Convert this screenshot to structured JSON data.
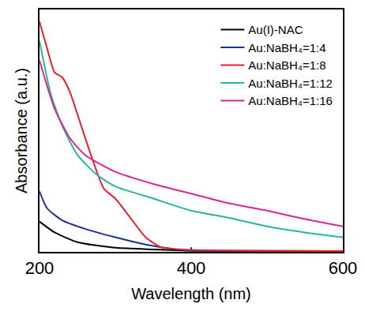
{
  "chart_data": {
    "type": "line",
    "x_label": "Wavelength (nm)",
    "y_label": "Absorbance (a.u.)",
    "xlim": [
      200,
      600
    ],
    "xticks": [
      200,
      400,
      600
    ],
    "ylim": [
      0,
      1
    ],
    "tick_labels": "x",
    "grid": false,
    "legend": "top-right",
    "series": [
      {
        "name": "Au(I)-NAC",
        "color": "#000000",
        "x": [
          200,
          220,
          250,
          300,
          350,
          400,
          600
        ],
        "values": [
          0.125,
          0.08,
          0.04,
          0.017,
          0.01,
          0.005,
          0.003
        ]
      },
      {
        "name": "Au:NaBH₄=1:4",
        "color": "#1f2f8f",
        "x": [
          200,
          210,
          230,
          260,
          300,
          340,
          380,
          400,
          600
        ],
        "values": [
          0.25,
          0.18,
          0.13,
          0.095,
          0.06,
          0.03,
          0.01,
          0.005,
          0.002
        ]
      },
      {
        "name": "Au:NaBH₄=1:8",
        "color": "#e8202a",
        "x": [
          200,
          210,
          220,
          230,
          240,
          255,
          270,
          285,
          300,
          320,
          340,
          360,
          400,
          500,
          600
        ],
        "values": [
          0.95,
          0.84,
          0.74,
          0.72,
          0.66,
          0.52,
          0.38,
          0.26,
          0.22,
          0.14,
          0.06,
          0.02,
          0.008,
          0.004,
          0.003
        ]
      },
      {
        "name": "Au:NaBH₄=1:12",
        "color": "#2bb5a0",
        "x": [
          200,
          215,
          230,
          250,
          275,
          300,
          350,
          400,
          450,
          500,
          550,
          600
        ],
        "values": [
          0.87,
          0.65,
          0.52,
          0.4,
          0.32,
          0.27,
          0.22,
          0.17,
          0.14,
          0.105,
          0.08,
          0.06
        ]
      },
      {
        "name": "Au:NaBH₄=1:16",
        "color": "#d6288f",
        "x": [
          200,
          220,
          240,
          260,
          300,
          350,
          400,
          450,
          500,
          550,
          600
        ],
        "values": [
          0.79,
          0.59,
          0.47,
          0.4,
          0.33,
          0.28,
          0.24,
          0.2,
          0.17,
          0.135,
          0.105
        ]
      }
    ]
  }
}
